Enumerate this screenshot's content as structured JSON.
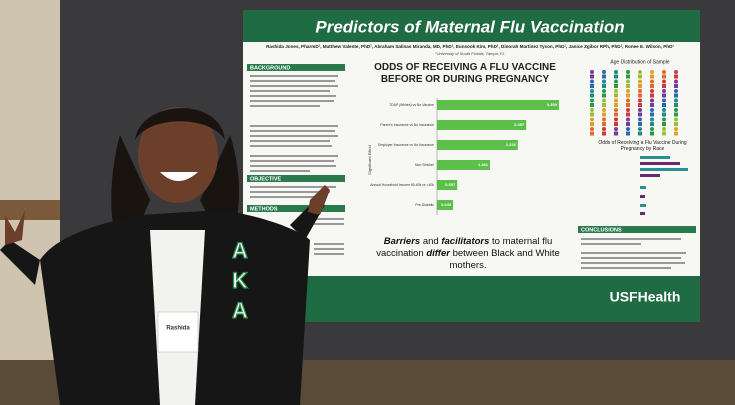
{
  "poster": {
    "title": "Predictors of Maternal Flu Vaccination",
    "authors": "Rashida Jones, PharmD¹, Matthew Valente, PhD¹, Abraham Salinas Miranda, MD, PhD¹, Eunsook Kim, PhD¹, Dinorah Martinez Tyson, PhD¹, Janice Zgibor RPh, PhD¹, Ronee E. Wilson, PhD¹",
    "affiliation": "¹University of South Florida, Tampa, FL",
    "sections": [
      "BACKGROUND",
      "OBJECTIVE",
      "METHODS"
    ],
    "chart": {
      "title": "ODDS OF RECEIVING A FLU VACCINE BEFORE OR DURING PREGNANCY",
      "axis_label": "Significant Effect",
      "bars": [
        {
          "label": "TDAP (Whites) vs No Vaccine",
          "value": 3.359
        },
        {
          "label": "Parent's Insurance vs No Insurance",
          "value": 2.457
        },
        {
          "label": "Employer-Insurance vs No Insurance",
          "value": 2.226
        },
        {
          "label": "Non-Smoker",
          "value": 1.461
        },
        {
          "label": "Annual Household Income 50-60k vs <40k",
          "value": 0.557
        },
        {
          "label": "Pre-Diabetic",
          "value": 0.443
        }
      ]
    },
    "caption": {
      "part1": "Barriers",
      "part2": " and ",
      "part3": "facilitators",
      "part4": " to maternal flu vaccination ",
      "part5": "differ",
      "part6": " between Black and White mothers."
    },
    "right_titles": [
      "Age Distribution of Sample",
      "Odds of Receiving a Flu Vaccine During Pregnancy by Race"
    ],
    "conclusions": "CONCLUSIONS",
    "logo": "USFHealth"
  },
  "badge": "Rashida",
  "letters": [
    "A",
    "K",
    "A"
  ]
}
